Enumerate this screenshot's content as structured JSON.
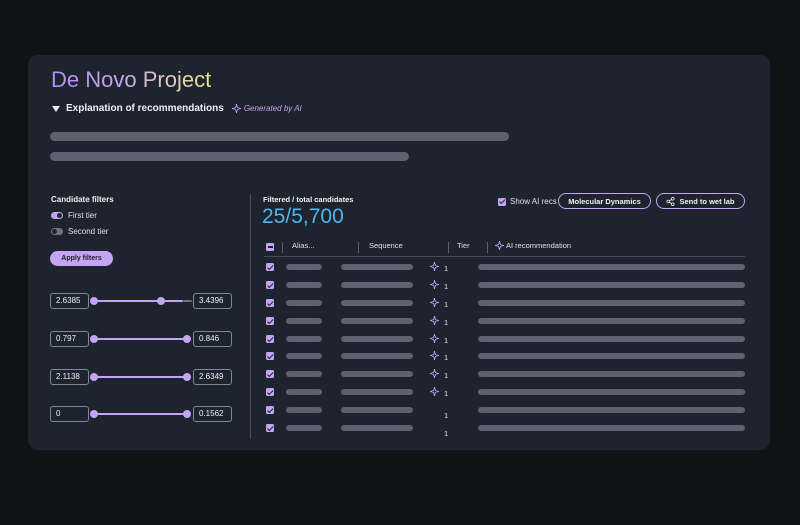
{
  "project": {
    "title": "De Novo Project"
  },
  "explanation": {
    "label": "Explanation of recommendations",
    "generated_label": "Generated by AI"
  },
  "filters": {
    "title": "Candidate filters",
    "toggles": [
      {
        "label": "First tier",
        "on": true
      },
      {
        "label": "Second tier",
        "on": false
      }
    ],
    "apply_label": "Apply filters",
    "ranges": [
      {
        "min": "2.6385",
        "max": "3.4396"
      },
      {
        "min": "0.797",
        "max": "0.846"
      },
      {
        "min": "2.1138",
        "max": "2.6349"
      },
      {
        "min": "0",
        "max": "0.1562"
      }
    ]
  },
  "results": {
    "count_label": "Filtered / total candidates",
    "count_value": "25/5,700",
    "show_ai_label": "Show AI recs",
    "md_button": "Molecular Dynamics",
    "wetlab_button": "Send to wet lab"
  },
  "table": {
    "columns": {
      "alias": "Alias...",
      "sequence": "Sequence",
      "tier": "Tier",
      "ai": "AI recommendation"
    },
    "rows": [
      {
        "tier": "1",
        "ai_icon": true
      },
      {
        "tier": "1",
        "ai_icon": true
      },
      {
        "tier": "1",
        "ai_icon": true
      },
      {
        "tier": "1",
        "ai_icon": true
      },
      {
        "tier": "1",
        "ai_icon": true
      },
      {
        "tier": "1",
        "ai_icon": true
      },
      {
        "tier": "1",
        "ai_icon": true
      },
      {
        "tier": "1",
        "ai_icon": true
      },
      {
        "tier": "1",
        "ai_icon": false
      },
      {
        "tier": "1",
        "ai_icon": false
      }
    ]
  },
  "colors": {
    "accent": "#c6a4f4",
    "count": "#4fb3f0",
    "panel": "#1e242e",
    "skeleton": "#5c6270"
  }
}
